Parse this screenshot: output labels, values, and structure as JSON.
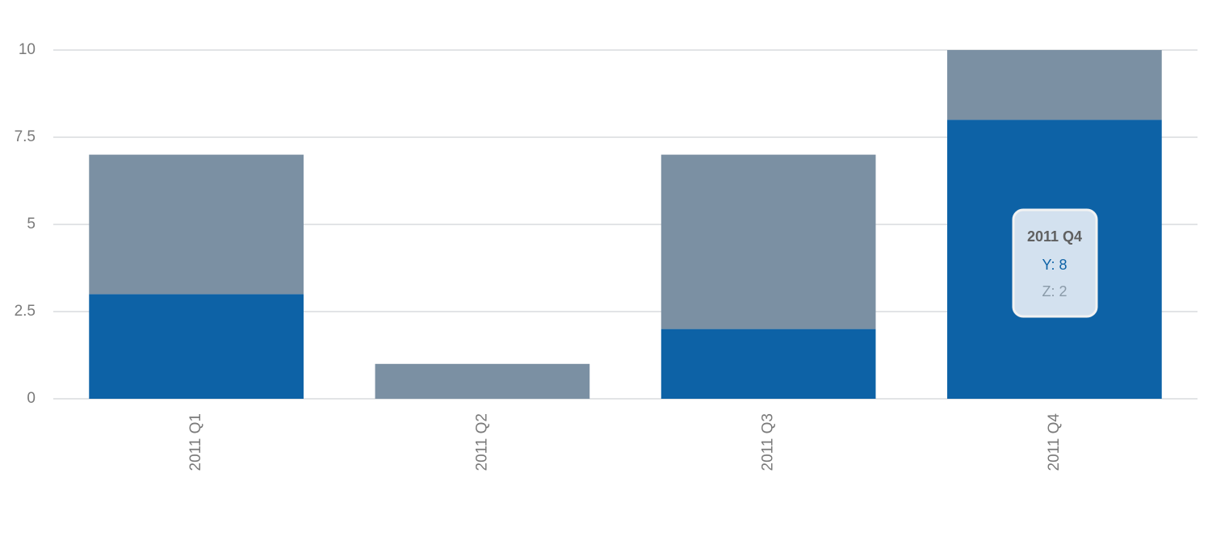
{
  "chart_data": {
    "type": "stacked_bar",
    "categories": [
      "2011 Q1",
      "2011 Q2",
      "2011 Q3",
      "2011 Q4"
    ],
    "series": [
      {
        "name": "Y",
        "color": "#0d62a6",
        "values": [
          3,
          0,
          2,
          8
        ]
      },
      {
        "name": "Z",
        "color": "#7b90a3",
        "values": [
          4,
          1,
          5,
          2
        ]
      }
    ],
    "ylim": [
      0,
      10
    ],
    "yticks": [
      0,
      2.5,
      5,
      7.5,
      10
    ],
    "grid": true,
    "tooltip": {
      "title": "2011 Q4",
      "lines": [
        "Y: 8",
        "Z: 2"
      ]
    }
  }
}
